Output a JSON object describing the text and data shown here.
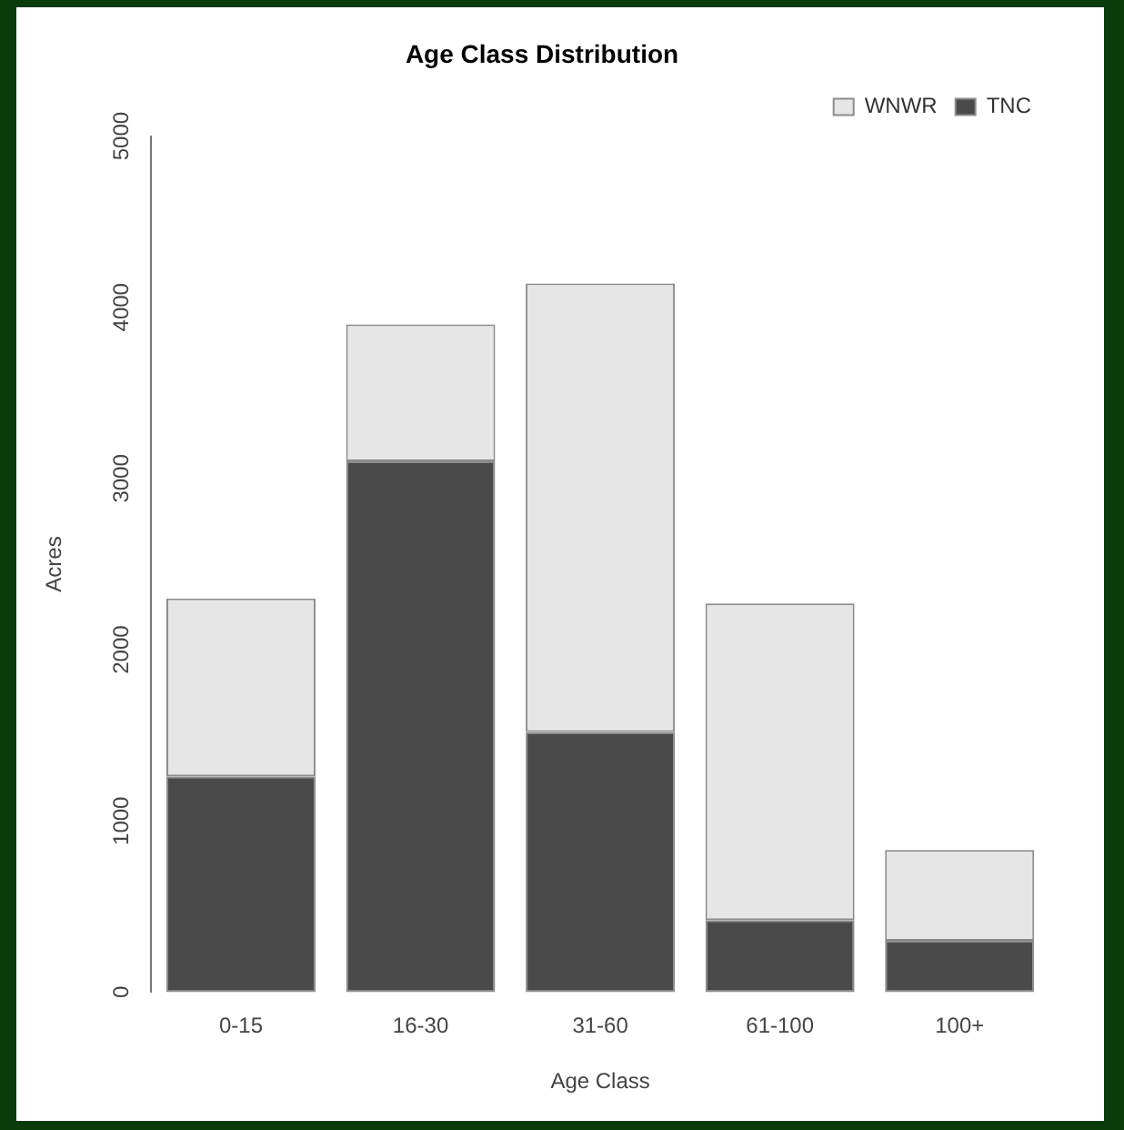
{
  "chart_data": {
    "type": "bar",
    "title": "Age Class Distribution",
    "xlabel": "Age Class",
    "ylabel": "Acres",
    "categories": [
      "0-15",
      "16-30",
      "31-60",
      "61-100",
      "100+"
    ],
    "stacked": true,
    "series": [
      {
        "name": "TNC",
        "color": "#4a4a4a",
        "values": [
          1260,
          3100,
          1520,
          420,
          300
        ]
      },
      {
        "name": "WNWR",
        "color": "#e6e6e6",
        "values": [
          1040,
          800,
          2620,
          1850,
          530
        ]
      }
    ],
    "ylim": [
      0,
      5000
    ],
    "yticks": [
      0,
      1000,
      2000,
      3000,
      4000,
      5000
    ],
    "grid": false,
    "legend": "top right"
  }
}
